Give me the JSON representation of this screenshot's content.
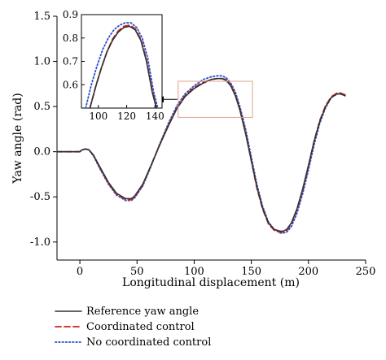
{
  "chart_data": {
    "type": "line",
    "title": "",
    "xlabel": "Longitudinal displacement (m)",
    "ylabel": "Yaw angle (rad)",
    "xlim": [
      -20,
      250
    ],
    "ylim": [
      -1.2,
      1.5
    ],
    "xticks": [
      "0",
      "50",
      "100",
      "150",
      "200",
      "250"
    ],
    "yticks": [
      "-1.0",
      "-0.5",
      "0.0",
      "0.5",
      "1.0",
      "1.5"
    ],
    "grid": false,
    "legend_position": "bottom-left",
    "series": [
      {
        "name": "Reference yaw angle",
        "color": "#333333",
        "style": "solid",
        "x": [
          -20,
          0,
          2,
          5,
          8,
          12,
          18,
          25,
          32,
          40,
          45,
          48,
          55,
          62,
          70,
          78,
          85,
          92,
          100,
          108,
          115,
          120,
          124,
          128,
          132,
          136,
          140,
          145,
          150,
          155,
          160,
          165,
          170,
          175,
          178,
          181,
          185,
          190,
          195,
          200,
          205,
          210,
          215,
          220,
          225,
          228,
          230,
          232
        ],
        "y": [
          0.0,
          0.0,
          0.02,
          0.03,
          0.02,
          -0.04,
          -0.18,
          -0.34,
          -0.46,
          -0.52,
          -0.52,
          -0.49,
          -0.36,
          -0.16,
          0.08,
          0.3,
          0.48,
          0.61,
          0.7,
          0.76,
          0.8,
          0.81,
          0.81,
          0.79,
          0.73,
          0.62,
          0.46,
          0.2,
          -0.1,
          -0.4,
          -0.63,
          -0.79,
          -0.86,
          -0.88,
          -0.88,
          -0.86,
          -0.79,
          -0.63,
          -0.41,
          -0.15,
          0.12,
          0.34,
          0.5,
          0.6,
          0.64,
          0.64,
          0.63,
          0.62
        ]
      },
      {
        "name": "Coordinated control",
        "color": "#d0211b",
        "style": "dashed",
        "x": [
          -20,
          0,
          2,
          5,
          8,
          12,
          18,
          25,
          32,
          40,
          45,
          48,
          55,
          62,
          70,
          78,
          85,
          92,
          100,
          108,
          115,
          120,
          124,
          128,
          132,
          136,
          140,
          145,
          150,
          155,
          160,
          165,
          170,
          175,
          178,
          181,
          185,
          190,
          195,
          200,
          205,
          210,
          215,
          220,
          225,
          228,
          230,
          232
        ],
        "y": [
          0.0,
          0.0,
          0.02,
          0.03,
          0.02,
          -0.04,
          -0.19,
          -0.35,
          -0.47,
          -0.53,
          -0.53,
          -0.5,
          -0.37,
          -0.16,
          0.08,
          0.31,
          0.49,
          0.62,
          0.71,
          0.77,
          0.8,
          0.81,
          0.81,
          0.8,
          0.74,
          0.63,
          0.47,
          0.21,
          -0.1,
          -0.41,
          -0.64,
          -0.8,
          -0.87,
          -0.89,
          -0.89,
          -0.87,
          -0.8,
          -0.64,
          -0.42,
          -0.16,
          0.12,
          0.35,
          0.51,
          0.61,
          0.65,
          0.65,
          0.64,
          0.63
        ]
      },
      {
        "name": "No coordinated control",
        "color": "#2a4fcf",
        "style": "dotted",
        "x": [
          -20,
          0,
          2,
          5,
          8,
          12,
          18,
          25,
          32,
          40,
          45,
          48,
          55,
          62,
          70,
          78,
          85,
          92,
          100,
          108,
          115,
          120,
          124,
          128,
          132,
          136,
          140,
          145,
          150,
          155,
          160,
          165,
          170,
          175,
          178,
          181,
          185,
          190,
          195,
          200,
          205,
          210,
          215,
          220,
          225,
          228,
          230,
          232
        ],
        "y": [
          0.0,
          0.0,
          0.02,
          0.03,
          0.02,
          -0.05,
          -0.2,
          -0.36,
          -0.48,
          -0.54,
          -0.54,
          -0.51,
          -0.38,
          -0.17,
          0.09,
          0.33,
          0.51,
          0.64,
          0.73,
          0.8,
          0.83,
          0.84,
          0.84,
          0.82,
          0.76,
          0.66,
          0.5,
          0.25,
          -0.06,
          -0.37,
          -0.61,
          -0.78,
          -0.86,
          -0.9,
          -0.9,
          -0.89,
          -0.83,
          -0.68,
          -0.46,
          -0.2,
          0.08,
          0.32,
          0.49,
          0.6,
          0.64,
          0.64,
          0.63,
          0.62
        ]
      }
    ],
    "inset": {
      "xlim": [
        88,
        145
      ],
      "ylim": [
        0.5,
        0.9
      ],
      "xticks": [
        "100",
        "120",
        "140"
      ],
      "yticks": [
        "0.6",
        "0.7",
        "0.8",
        "0.9"
      ],
      "zoom_region": {
        "x": [
          86,
          151
        ],
        "y": [
          0.38,
          0.78
        ]
      },
      "series": [
        {
          "name": "Reference yaw angle",
          "x": [
            94,
            98,
            102,
            106,
            110,
            114,
            118,
            122,
            126,
            130,
            134,
            138,
            141
          ],
          "y": [
            0.5,
            0.59,
            0.67,
            0.74,
            0.79,
            0.825,
            0.845,
            0.85,
            0.835,
            0.79,
            0.7,
            0.57,
            0.5
          ]
        },
        {
          "name": "Coordinated control",
          "x": [
            94,
            98,
            102,
            106,
            110,
            114,
            118,
            122,
            126,
            130,
            134,
            138,
            141
          ],
          "y": [
            0.5,
            0.59,
            0.67,
            0.74,
            0.795,
            0.83,
            0.85,
            0.855,
            0.84,
            0.795,
            0.705,
            0.575,
            0.5
          ]
        },
        {
          "name": "No coordinated control",
          "x": [
            91,
            95,
            99,
            103,
            107,
            111,
            115,
            119,
            123,
            127,
            131,
            135,
            139,
            142
          ],
          "y": [
            0.5,
            0.6,
            0.68,
            0.75,
            0.8,
            0.835,
            0.855,
            0.865,
            0.865,
            0.845,
            0.8,
            0.71,
            0.57,
            0.5
          ]
        }
      ]
    }
  }
}
